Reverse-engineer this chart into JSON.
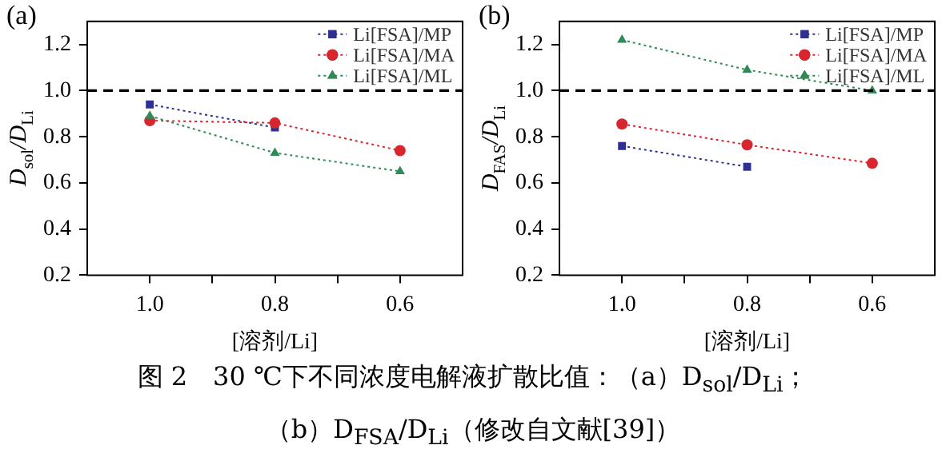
{
  "chart_data": [
    {
      "type": "line",
      "title": "(a)",
      "xlabel": "[溶剂/Li]",
      "ylabel": "D$_{sol}$/D$_{Li}$",
      "x": [
        1.0,
        0.8,
        0.6
      ],
      "xlim": [
        1.1,
        0.5
      ],
      "xticks": [
        {
          "value": 1.0,
          "label": "1.0"
        },
        {
          "value": 0.9,
          "label": null
        },
        {
          "value": 0.8,
          "label": "0.8"
        },
        {
          "value": 0.7,
          "label": null
        },
        {
          "value": 0.6,
          "label": "0.6"
        }
      ],
      "ylim": [
        0.2,
        1.3
      ],
      "yticks": [
        {
          "value": 0.2,
          "label": "0.2"
        },
        {
          "value": 0.4,
          "label": "0.4"
        },
        {
          "value": 0.6,
          "label": "0.6"
        },
        {
          "value": 0.8,
          "label": "0.8"
        },
        {
          "value": 1.0,
          "label": "1.0"
        },
        {
          "value": 1.2,
          "label": "1.2"
        }
      ],
      "grid": false,
      "legend": "top right",
      "line_style": "dotted",
      "ref_lines": [
        {
          "axis": "y",
          "value": 1.0,
          "line_style": "dashed",
          "color": "#000000"
        }
      ],
      "annotations": [
        "图 2　30 ℃下不同浓度电解液扩散比值：（a）D$_{sol}$/D$_{Li}$；",
        "（b）D$_{FSA}$/D$_{Li}$（修改自文献[39]）"
      ],
      "series": [
        {
          "name": "Li[FSA]/MP",
          "color": "#2e3192",
          "marker": "square",
          "values": [
            0.94,
            0.84,
            null
          ]
        },
        {
          "name": "Li[FSA]/MA",
          "color": "#d9262e",
          "marker": "circle",
          "values": [
            0.87,
            0.86,
            0.74
          ]
        },
        {
          "name": "Li[FSA]/ML",
          "color": "#2e8b57",
          "marker": "triangle",
          "values": [
            0.89,
            0.73,
            0.65
          ]
        }
      ]
    },
    {
      "type": "line",
      "title": "(b)",
      "xlabel": "[溶剂/Li]",
      "ylabel": "D$_{FAS}$/D$_{Li}$",
      "x": [
        1.0,
        0.8,
        0.6
      ],
      "xlim": [
        1.1,
        0.5
      ],
      "xticks": [
        {
          "value": 1.0,
          "label": "1.0"
        },
        {
          "value": 0.9,
          "label": null
        },
        {
          "value": 0.8,
          "label": "0.8"
        },
        {
          "value": 0.7,
          "label": null
        },
        {
          "value": 0.6,
          "label": "0.6"
        }
      ],
      "ylim": [
        0.2,
        1.3
      ],
      "yticks": [
        {
          "value": 0.2,
          "label": "0.2"
        },
        {
          "value": 0.4,
          "label": "0.4"
        },
        {
          "value": 0.6,
          "label": "0.6"
        },
        {
          "value": 0.8,
          "label": "0.8"
        },
        {
          "value": 1.0,
          "label": "1.0"
        },
        {
          "value": 1.2,
          "label": "1.2"
        }
      ],
      "grid": false,
      "legend": "top right",
      "line_style": "dotted",
      "ref_lines": [
        {
          "axis": "y",
          "value": 1.0,
          "line_style": "dashed",
          "color": "#000000"
        }
      ],
      "series": [
        {
          "name": "Li[FSA]/MP",
          "color": "#2e3192",
          "marker": "square",
          "values": [
            0.76,
            0.67,
            null
          ]
        },
        {
          "name": "Li[FSA]/MA",
          "color": "#d9262e",
          "marker": "circle",
          "values": [
            0.855,
            0.765,
            0.685
          ]
        },
        {
          "name": "Li[FSA]/ML",
          "color": "#2e8b57",
          "marker": "triangle",
          "values": [
            1.22,
            1.09,
            1.0
          ]
        }
      ]
    }
  ]
}
